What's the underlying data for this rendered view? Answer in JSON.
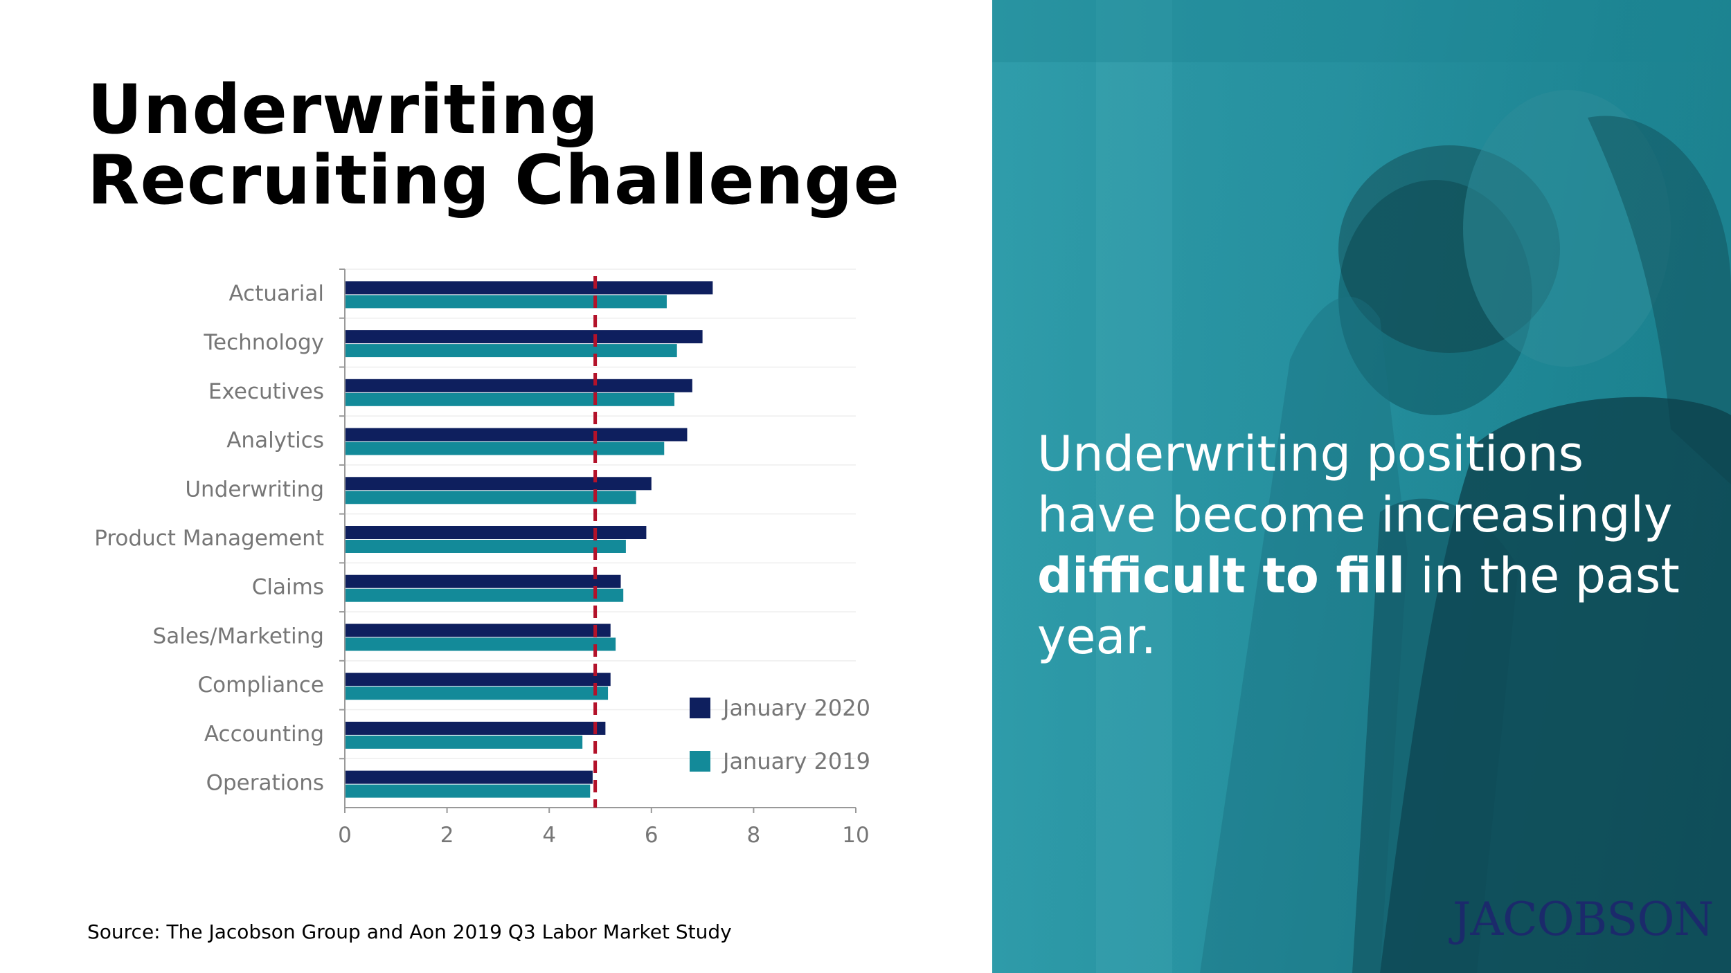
{
  "slide": {
    "title_line1": "Underwriting",
    "title_line2": "Recruiting Challenge",
    "source": "Source: The Jacobson Group and Aon 2019 Q3 Labor Market Study",
    "tagline_part1": "Underwriting positions have become increasingly ",
    "tagline_bold": "difficult to fill",
    "tagline_part2": " in the past year.",
    "logo": "JACOBSON"
  },
  "colors": {
    "series_2020": "#0e1f5e",
    "series_2019": "#138a99",
    "reference_line": "#b3122a",
    "panel": "#2893a2",
    "logo": "#1b2a6b"
  },
  "chart_data": {
    "type": "bar",
    "orientation": "horizontal",
    "categories": [
      "Actuarial",
      "Technology",
      "Executives",
      "Analytics",
      "Underwriting",
      "Product Management",
      "Claims",
      "Sales/Marketing",
      "Compliance",
      "Accounting",
      "Operations"
    ],
    "series": [
      {
        "name": "January 2020",
        "values": [
          7.2,
          7.0,
          6.8,
          6.7,
          6.0,
          5.9,
          5.4,
          5.2,
          5.2,
          5.1,
          4.85
        ]
      },
      {
        "name": "January 2019",
        "values": [
          6.3,
          6.5,
          6.45,
          6.25,
          5.7,
          5.5,
          5.45,
          5.3,
          5.15,
          4.65,
          4.8
        ]
      }
    ],
    "reference_line": {
      "value": 4.9,
      "style": "dashed"
    },
    "xlim": [
      0,
      10
    ],
    "xticks": [
      0,
      2,
      4,
      6,
      8,
      10
    ],
    "xlabel": "",
    "ylabel": "",
    "legend_position": "bottom-right",
    "grid": "horizontal"
  }
}
